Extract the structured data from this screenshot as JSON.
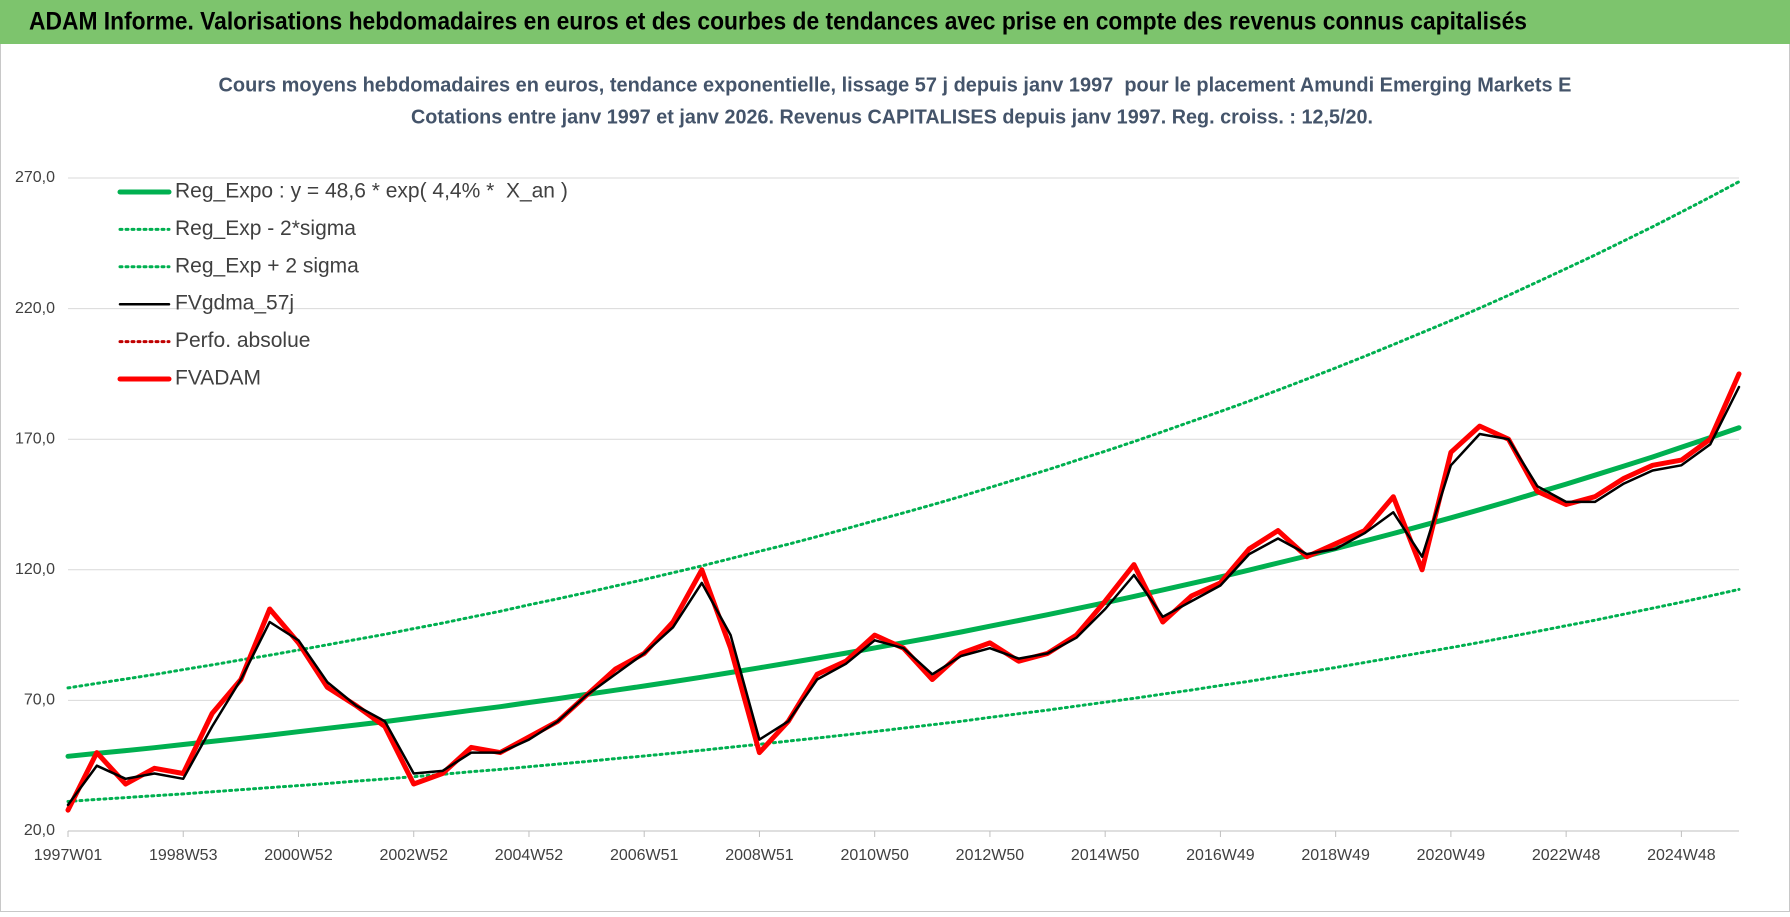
{
  "banner": "ADAM Informe. Valorisations hebdomadaires en euros et des courbes de tendances avec prise en compte des revenus connus capitalisés",
  "chart_data": {
    "type": "line",
    "title": "Cours moyens hebdomadaires en euros, tendance exponentielle, lissage 57 j depuis janv 1997  pour le placement Amundi Emerging Markets E",
    "subtitle": "Cotations entre janv 1997 et janv 2026. Revenus CAPITALISES depuis janv 1997. Reg. croiss. : 12,5/20.",
    "categories": [
      "1997W01",
      null,
      null,
      null,
      "1998W53",
      null,
      null,
      null,
      "2000W52",
      null,
      null,
      null,
      "2002W52",
      null,
      null,
      null,
      "2004W52",
      null,
      null,
      null,
      "2006W51",
      null,
      null,
      null,
      "2008W51",
      null,
      null,
      null,
      "2010W50",
      null,
      null,
      null,
      "2012W50",
      null,
      null,
      null,
      "2014W50",
      null,
      null,
      null,
      "2016W49",
      null,
      null,
      null,
      "2018W49",
      null,
      null,
      null,
      "2020W49",
      null,
      null,
      null,
      "2022W48",
      null,
      null,
      null,
      "2024W48",
      null,
      null
    ],
    "ylim": [
      20,
      270
    ],
    "yticks": [
      {
        "value": 20,
        "label": "20,0"
      },
      {
        "value": 70,
        "label": "70,0"
      },
      {
        "value": 120,
        "label": "120,0"
      },
      {
        "value": 170,
        "label": "170,0"
      },
      {
        "value": 220,
        "label": "220,0"
      },
      {
        "value": 270,
        "label": "270,0"
      }
    ],
    "grid": true,
    "legend": "top-left",
    "series": [
      {
        "name": "Reg_Expo : y = 48,6 * exp( 4,4% *  X_an )",
        "color": "#00b050",
        "style": "thick",
        "values": [
          48.6,
          49.7,
          50.8,
          51.9,
          53.1,
          54.3,
          55.5,
          56.7,
          58.0,
          59.3,
          60.6,
          61.9,
          63.3,
          64.7,
          66.2,
          67.6,
          69.2,
          70.7,
          72.3,
          73.9,
          75.5,
          77.2,
          78.9,
          80.7,
          82.5,
          84.3,
          86.2,
          88.1,
          90.1,
          92.1,
          94.1,
          96.2,
          98.4,
          100.6,
          102.8,
          105.1,
          107.4,
          109.8,
          112.3,
          114.8,
          117.3,
          119.9,
          122.6,
          125.3,
          128.1,
          131.0,
          133.9,
          136.9,
          139.9,
          143.0,
          146.2,
          149.5,
          152.8,
          156.2,
          159.7,
          163.2,
          166.9,
          170.6,
          174.4
        ]
      },
      {
        "name": "Reg_Exp - 2*sigma",
        "color": "#00b050",
        "style": "dotted",
        "values": [
          31.3,
          32.1,
          32.8,
          33.5,
          34.2,
          35.0,
          35.8,
          36.6,
          37.4,
          38.2,
          39.1,
          39.9,
          40.8,
          41.7,
          42.7,
          43.6,
          44.6,
          45.6,
          46.6,
          47.7,
          48.7,
          49.8,
          50.9,
          52.1,
          53.2,
          54.4,
          55.6,
          56.8,
          58.1,
          59.4,
          60.7,
          62.0,
          63.5,
          64.9,
          66.3,
          67.8,
          69.3,
          70.8,
          72.4,
          74.0,
          75.7,
          77.3,
          79.1,
          80.8,
          82.6,
          84.5,
          86.4,
          88.3,
          90.2,
          92.2,
          94.3,
          96.4,
          98.6,
          100.7,
          103.0,
          105.3,
          107.6,
          110.0,
          112.5
        ]
      },
      {
        "name": "Reg_Exp + 2 sigma",
        "color": "#00b050",
        "style": "dotted",
        "values": [
          74.8,
          76.5,
          78.2,
          79.9,
          81.8,
          83.6,
          85.5,
          87.3,
          89.3,
          91.3,
          93.3,
          95.3,
          97.5,
          99.6,
          101.9,
          104.1,
          106.6,
          108.9,
          111.3,
          113.8,
          116.3,
          118.9,
          121.5,
          124.3,
          127.1,
          129.8,
          132.7,
          135.7,
          138.8,
          141.8,
          144.9,
          148.1,
          151.5,
          154.9,
          158.3,
          161.9,
          165.4,
          169.1,
          172.9,
          176.8,
          180.6,
          184.6,
          188.8,
          193.0,
          197.3,
          201.7,
          206.2,
          210.8,
          215.4,
          220.2,
          225.1,
          230.2,
          235.3,
          240.5,
          245.9,
          251.3,
          257.0,
          262.7,
          268.6
        ]
      },
      {
        "name": "FVgdma_57j",
        "color": "#000000",
        "style": "solid",
        "values": [
          30,
          45,
          40,
          42,
          40,
          60,
          78,
          100,
          93,
          77,
          68,
          62,
          42,
          43,
          50,
          50,
          55,
          62,
          72,
          80,
          88,
          98,
          115,
          95,
          55,
          62,
          78,
          84,
          93,
          90,
          80,
          87,
          90,
          86,
          88,
          94,
          105,
          118,
          102,
          108,
          114,
          126,
          132,
          126,
          128,
          134,
          142,
          125,
          160,
          172,
          170,
          152,
          146,
          146,
          153,
          158,
          160,
          168,
          190
        ]
      },
      {
        "name": "Perfo. absolue",
        "color": "#c00000",
        "style": "dotted",
        "values": [
          28,
          50,
          38,
          44,
          42,
          65,
          78,
          105,
          92,
          75,
          68,
          60,
          38,
          42,
          52,
          50,
          56,
          62,
          72,
          82,
          88,
          100,
          120,
          90,
          50,
          62,
          80,
          85,
          95,
          90,
          78,
          88,
          92,
          85,
          88,
          95,
          108,
          122,
          100,
          110,
          115,
          128,
          135,
          125,
          130,
          135,
          148,
          120,
          165,
          175,
          170,
          150,
          145,
          148,
          155,
          160,
          162,
          170,
          195
        ]
      },
      {
        "name": "FVADAM",
        "color": "#ff0000",
        "style": "thick",
        "values": [
          28,
          50,
          38,
          44,
          42,
          65,
          78,
          105,
          92,
          75,
          68,
          60,
          38,
          42,
          52,
          50,
          56,
          62,
          72,
          82,
          88,
          100,
          120,
          90,
          50,
          62,
          80,
          85,
          95,
          90,
          78,
          88,
          92,
          85,
          88,
          95,
          108,
          122,
          100,
          110,
          115,
          128,
          135,
          125,
          130,
          135,
          148,
          120,
          165,
          175,
          170,
          150,
          145,
          148,
          155,
          160,
          162,
          170,
          195
        ]
      }
    ]
  }
}
